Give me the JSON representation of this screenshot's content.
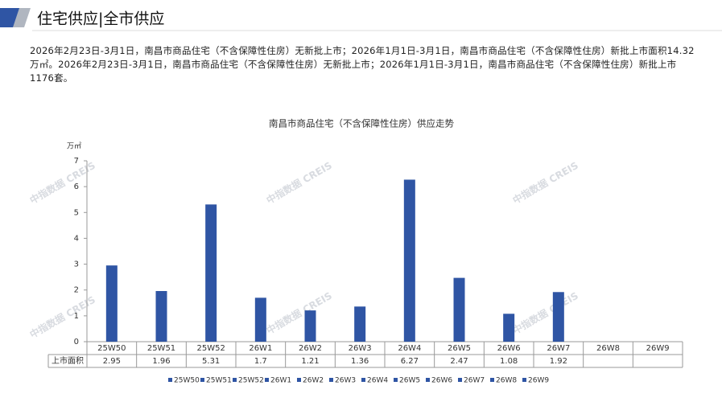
{
  "header": {
    "title": "住宅供应|全市供应"
  },
  "summary": "2026年2月23日-3月1日，南昌市商品住宅（不含保障性住房）无新批上市；2026年1月1日-3月1日，南昌市商品住宅（不含保障性住房）新批上市面积14.32万㎡。2026年2月23日-3月1日，南昌市商品住宅（不含保障性住房）无新批上市；2026年1月1日-3月1日，南昌市商品住宅（不含保障性住房）新批上市1176套。",
  "watermark": "中指数据 CREIS",
  "chart_data": {
    "type": "bar",
    "title": "南昌市商品住宅（不含保障性住房）供应走势",
    "y_unit": "万㎡",
    "categories": [
      "25W50",
      "25W51",
      "25W52",
      "26W1",
      "26W2",
      "26W3",
      "26W4",
      "26W5",
      "26W6",
      "26W7",
      "26W8",
      "26W9"
    ],
    "values": [
      2.95,
      1.96,
      5.31,
      1.7,
      1.21,
      1.36,
      6.27,
      2.47,
      1.08,
      1.92,
      null,
      null
    ],
    "color": "#2f55a4",
    "ylim": [
      0,
      7
    ],
    "yticks": [
      0,
      1,
      2,
      3,
      4,
      5,
      6,
      7
    ],
    "table_row_label": "上市面积",
    "legend": true
  }
}
